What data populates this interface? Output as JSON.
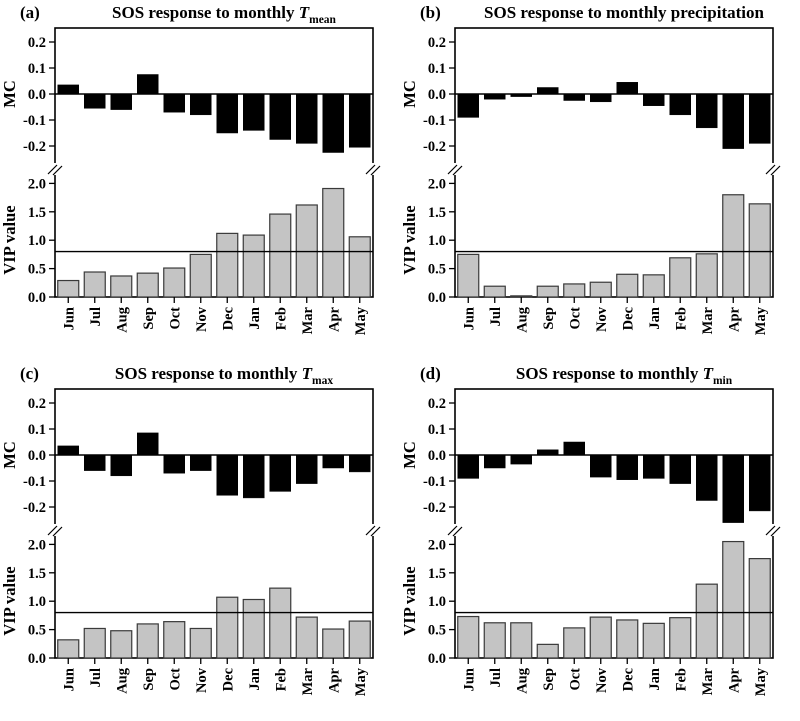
{
  "page": {
    "background": "#ffffff"
  },
  "colors": {
    "mc_bar_fill": "#000000",
    "vip_bar_fill": "#c4c4c4",
    "vip_bar_stroke": "#3a3a3a",
    "axis": "#000000",
    "threshold_line": "#000000"
  },
  "chart_data": [
    {
      "type": "bar",
      "panel_label": "(a)",
      "title": "SOS response to monthly T_mean",
      "title_parts": {
        "prefix": "SOS response to monthly ",
        "var": "T",
        "subscript": "mean"
      },
      "categories": [
        "Jun",
        "Jul",
        "Aug",
        "Sep",
        "Oct",
        "Nov",
        "Dec",
        "Jan",
        "Feb",
        "Mar",
        "Apr",
        "May"
      ],
      "top_axis": {
        "label": "MC",
        "ylim": [
          -0.27,
          0.25
        ],
        "yticks": [
          0.2,
          0.1,
          0.0,
          -0.1,
          -0.2
        ],
        "ytick_labels": [
          "0.2",
          "0.1",
          "0.0",
          "-0.1",
          "-0.2"
        ]
      },
      "bottom_axis": {
        "label": "VIP value",
        "ylim": [
          0.0,
          2.25
        ],
        "yticks": [
          2.0,
          1.5,
          1.0,
          0.5,
          0.0
        ],
        "ytick_labels": [
          "2.0",
          "1.5",
          "1.0",
          "0.5",
          "0.0"
        ],
        "threshold": 0.8
      },
      "axis_break": true,
      "series": [
        {
          "name": "MC",
          "axis": "top",
          "values": [
            0.035,
            -0.055,
            -0.06,
            0.075,
            -0.07,
            -0.08,
            -0.15,
            -0.14,
            -0.175,
            -0.19,
            -0.225,
            -0.205
          ]
        },
        {
          "name": "VIP value",
          "axis": "bottom",
          "values": [
            0.29,
            0.44,
            0.37,
            0.42,
            0.51,
            0.75,
            1.12,
            1.09,
            1.46,
            1.62,
            1.91,
            1.06
          ]
        }
      ]
    },
    {
      "type": "bar",
      "panel_label": "(b)",
      "title": "SOS response to monthly precipitation",
      "title_parts": {
        "prefix": "SOS response to monthly precipitation",
        "var": "",
        "subscript": ""
      },
      "categories": [
        "Jun",
        "Jul",
        "Aug",
        "Sep",
        "Oct",
        "Nov",
        "Dec",
        "Jan",
        "Feb",
        "Mar",
        "Apr",
        "May"
      ],
      "top_axis": {
        "label": "MC",
        "ylim": [
          -0.27,
          0.25
        ],
        "yticks": [
          0.2,
          0.1,
          0.0,
          -0.1,
          -0.2
        ],
        "ytick_labels": [
          "0.2",
          "0.1",
          "0.0",
          "-0.1",
          "-0.2"
        ]
      },
      "bottom_axis": {
        "label": "VIP value",
        "ylim": [
          0.0,
          2.25
        ],
        "yticks": [
          2.0,
          1.5,
          1.0,
          0.5,
          0.0
        ],
        "ytick_labels": [
          "2.0",
          "1.5",
          "1.0",
          "0.5",
          "0.0"
        ],
        "threshold": 0.8
      },
      "axis_break": true,
      "series": [
        {
          "name": "MC",
          "axis": "top",
          "values": [
            -0.09,
            -0.02,
            -0.01,
            0.025,
            -0.025,
            -0.03,
            0.045,
            -0.045,
            -0.08,
            -0.13,
            -0.21,
            -0.19
          ]
        },
        {
          "name": "VIP value",
          "axis": "bottom",
          "values": [
            0.75,
            0.19,
            0.02,
            0.19,
            0.23,
            0.26,
            0.4,
            0.39,
            0.69,
            0.76,
            1.8,
            1.64
          ]
        }
      ]
    },
    {
      "type": "bar",
      "panel_label": "(c)",
      "title": "SOS response to monthly T_max",
      "title_parts": {
        "prefix": "SOS response to monthly ",
        "var": "T",
        "subscript": "max"
      },
      "categories": [
        "Jun",
        "Jul",
        "Aug",
        "Sep",
        "Oct",
        "Nov",
        "Dec",
        "Jan",
        "Feb",
        "Mar",
        "Apr",
        "May"
      ],
      "top_axis": {
        "label": "MC",
        "ylim": [
          -0.27,
          0.25
        ],
        "yticks": [
          0.2,
          0.1,
          0.0,
          -0.1,
          -0.2
        ],
        "ytick_labels": [
          "0.2",
          "0.1",
          "0.0",
          "-0.1",
          "-0.2"
        ]
      },
      "bottom_axis": {
        "label": "VIP value",
        "ylim": [
          0.0,
          2.25
        ],
        "yticks": [
          2.0,
          1.5,
          1.0,
          0.5,
          0.0
        ],
        "ytick_labels": [
          "2.0",
          "1.5",
          "1.0",
          "0.5",
          "0.0"
        ],
        "threshold": 0.8
      },
      "axis_break": true,
      "series": [
        {
          "name": "MC",
          "axis": "top",
          "values": [
            0.035,
            -0.06,
            -0.08,
            0.085,
            -0.07,
            -0.06,
            -0.155,
            -0.165,
            -0.14,
            -0.11,
            -0.05,
            -0.065
          ]
        },
        {
          "name": "VIP value",
          "axis": "bottom",
          "values": [
            0.32,
            0.52,
            0.48,
            0.6,
            0.64,
            0.52,
            1.07,
            1.03,
            1.23,
            0.72,
            0.51,
            0.65
          ]
        }
      ]
    },
    {
      "type": "bar",
      "panel_label": "(d)",
      "title": "SOS response to monthly T_min",
      "title_parts": {
        "prefix": "SOS response to monthly ",
        "var": "T",
        "subscript": "min"
      },
      "categories": [
        "Jun",
        "Jul",
        "Aug",
        "Sep",
        "Oct",
        "Nov",
        "Dec",
        "Jan",
        "Feb",
        "Mar",
        "Apr",
        "May"
      ],
      "top_axis": {
        "label": "MC",
        "ylim": [
          -0.29,
          0.25
        ],
        "yticks": [
          0.2,
          0.1,
          0.0,
          -0.1,
          -0.2
        ],
        "ytick_labels": [
          "0.2",
          "0.1",
          "0.0",
          "-0.1",
          "-0.2"
        ]
      },
      "bottom_axis": {
        "label": "VIP value",
        "ylim": [
          0.0,
          2.25
        ],
        "yticks": [
          2.0,
          1.5,
          1.0,
          0.5,
          0.0
        ],
        "ytick_labels": [
          "2.0",
          "1.5",
          "1.0",
          "0.5",
          "0.0"
        ],
        "threshold": 0.8
      },
      "axis_break": true,
      "series": [
        {
          "name": "MC",
          "axis": "top",
          "values": [
            -0.09,
            -0.05,
            -0.035,
            0.02,
            0.05,
            -0.085,
            -0.095,
            -0.09,
            -0.11,
            -0.175,
            -0.26,
            -0.215
          ]
        },
        {
          "name": "VIP value",
          "axis": "bottom",
          "values": [
            0.73,
            0.62,
            0.62,
            0.24,
            0.53,
            0.72,
            0.67,
            0.61,
            0.71,
            1.3,
            2.05,
            1.75
          ]
        }
      ]
    }
  ]
}
